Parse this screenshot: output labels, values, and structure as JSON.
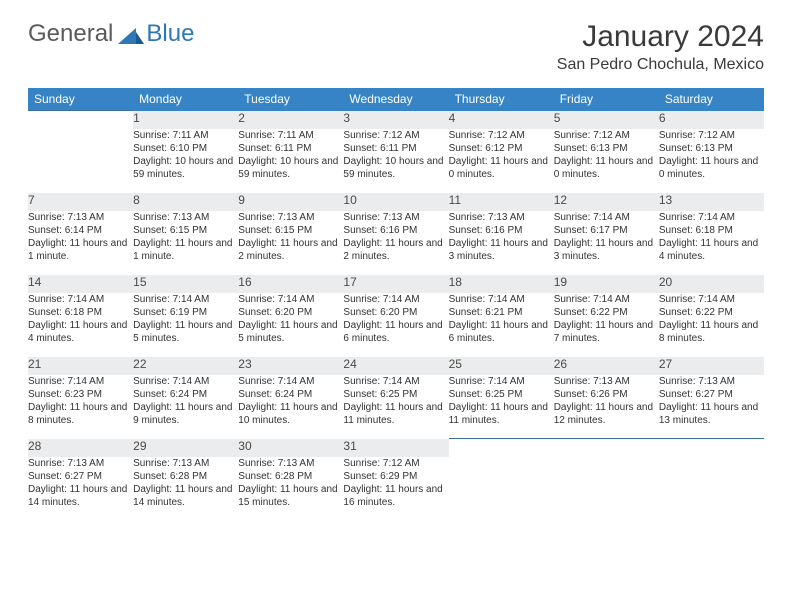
{
  "logo": {
    "general": "General",
    "blue": "Blue"
  },
  "header": {
    "month": "January 2024",
    "location": "San Pedro Chochula, Mexico"
  },
  "colors": {
    "header_bg": "#3684c6",
    "header_text": "#ffffff",
    "daynum_bg": "#ebeced",
    "rule": "#3a6fa0",
    "logo_gray": "#5a5a5a",
    "logo_blue": "#2f78b7"
  },
  "weekdays": [
    "Sunday",
    "Monday",
    "Tuesday",
    "Wednesday",
    "Thursday",
    "Friday",
    "Saturday"
  ],
  "weeks": [
    {
      "nums": [
        "",
        "1",
        "2",
        "3",
        "4",
        "5",
        "6"
      ],
      "cells": [
        null,
        {
          "sunrise": "Sunrise: 7:11 AM",
          "sunset": "Sunset: 6:10 PM",
          "daylight": "Daylight: 10 hours and 59 minutes."
        },
        {
          "sunrise": "Sunrise: 7:11 AM",
          "sunset": "Sunset: 6:11 PM",
          "daylight": "Daylight: 10 hours and 59 minutes."
        },
        {
          "sunrise": "Sunrise: 7:12 AM",
          "sunset": "Sunset: 6:11 PM",
          "daylight": "Daylight: 10 hours and 59 minutes."
        },
        {
          "sunrise": "Sunrise: 7:12 AM",
          "sunset": "Sunset: 6:12 PM",
          "daylight": "Daylight: 11 hours and 0 minutes."
        },
        {
          "sunrise": "Sunrise: 7:12 AM",
          "sunset": "Sunset: 6:13 PM",
          "daylight": "Daylight: 11 hours and 0 minutes."
        },
        {
          "sunrise": "Sunrise: 7:12 AM",
          "sunset": "Sunset: 6:13 PM",
          "daylight": "Daylight: 11 hours and 0 minutes."
        }
      ]
    },
    {
      "nums": [
        "7",
        "8",
        "9",
        "10",
        "11",
        "12",
        "13"
      ],
      "cells": [
        {
          "sunrise": "Sunrise: 7:13 AM",
          "sunset": "Sunset: 6:14 PM",
          "daylight": "Daylight: 11 hours and 1 minute."
        },
        {
          "sunrise": "Sunrise: 7:13 AM",
          "sunset": "Sunset: 6:15 PM",
          "daylight": "Daylight: 11 hours and 1 minute."
        },
        {
          "sunrise": "Sunrise: 7:13 AM",
          "sunset": "Sunset: 6:15 PM",
          "daylight": "Daylight: 11 hours and 2 minutes."
        },
        {
          "sunrise": "Sunrise: 7:13 AM",
          "sunset": "Sunset: 6:16 PM",
          "daylight": "Daylight: 11 hours and 2 minutes."
        },
        {
          "sunrise": "Sunrise: 7:13 AM",
          "sunset": "Sunset: 6:16 PM",
          "daylight": "Daylight: 11 hours and 3 minutes."
        },
        {
          "sunrise": "Sunrise: 7:14 AM",
          "sunset": "Sunset: 6:17 PM",
          "daylight": "Daylight: 11 hours and 3 minutes."
        },
        {
          "sunrise": "Sunrise: 7:14 AM",
          "sunset": "Sunset: 6:18 PM",
          "daylight": "Daylight: 11 hours and 4 minutes."
        }
      ]
    },
    {
      "nums": [
        "14",
        "15",
        "16",
        "17",
        "18",
        "19",
        "20"
      ],
      "cells": [
        {
          "sunrise": "Sunrise: 7:14 AM",
          "sunset": "Sunset: 6:18 PM",
          "daylight": "Daylight: 11 hours and 4 minutes."
        },
        {
          "sunrise": "Sunrise: 7:14 AM",
          "sunset": "Sunset: 6:19 PM",
          "daylight": "Daylight: 11 hours and 5 minutes."
        },
        {
          "sunrise": "Sunrise: 7:14 AM",
          "sunset": "Sunset: 6:20 PM",
          "daylight": "Daylight: 11 hours and 5 minutes."
        },
        {
          "sunrise": "Sunrise: 7:14 AM",
          "sunset": "Sunset: 6:20 PM",
          "daylight": "Daylight: 11 hours and 6 minutes."
        },
        {
          "sunrise": "Sunrise: 7:14 AM",
          "sunset": "Sunset: 6:21 PM",
          "daylight": "Daylight: 11 hours and 6 minutes."
        },
        {
          "sunrise": "Sunrise: 7:14 AM",
          "sunset": "Sunset: 6:22 PM",
          "daylight": "Daylight: 11 hours and 7 minutes."
        },
        {
          "sunrise": "Sunrise: 7:14 AM",
          "sunset": "Sunset: 6:22 PM",
          "daylight": "Daylight: 11 hours and 8 minutes."
        }
      ]
    },
    {
      "nums": [
        "21",
        "22",
        "23",
        "24",
        "25",
        "26",
        "27"
      ],
      "cells": [
        {
          "sunrise": "Sunrise: 7:14 AM",
          "sunset": "Sunset: 6:23 PM",
          "daylight": "Daylight: 11 hours and 8 minutes."
        },
        {
          "sunrise": "Sunrise: 7:14 AM",
          "sunset": "Sunset: 6:24 PM",
          "daylight": "Daylight: 11 hours and 9 minutes."
        },
        {
          "sunrise": "Sunrise: 7:14 AM",
          "sunset": "Sunset: 6:24 PM",
          "daylight": "Daylight: 11 hours and 10 minutes."
        },
        {
          "sunrise": "Sunrise: 7:14 AM",
          "sunset": "Sunset: 6:25 PM",
          "daylight": "Daylight: 11 hours and 11 minutes."
        },
        {
          "sunrise": "Sunrise: 7:14 AM",
          "sunset": "Sunset: 6:25 PM",
          "daylight": "Daylight: 11 hours and 11 minutes."
        },
        {
          "sunrise": "Sunrise: 7:13 AM",
          "sunset": "Sunset: 6:26 PM",
          "daylight": "Daylight: 11 hours and 12 minutes."
        },
        {
          "sunrise": "Sunrise: 7:13 AM",
          "sunset": "Sunset: 6:27 PM",
          "daylight": "Daylight: 11 hours and 13 minutes."
        }
      ]
    },
    {
      "nums": [
        "28",
        "29",
        "30",
        "31",
        "",
        "",
        ""
      ],
      "cells": [
        {
          "sunrise": "Sunrise: 7:13 AM",
          "sunset": "Sunset: 6:27 PM",
          "daylight": "Daylight: 11 hours and 14 minutes."
        },
        {
          "sunrise": "Sunrise: 7:13 AM",
          "sunset": "Sunset: 6:28 PM",
          "daylight": "Daylight: 11 hours and 14 minutes."
        },
        {
          "sunrise": "Sunrise: 7:13 AM",
          "sunset": "Sunset: 6:28 PM",
          "daylight": "Daylight: 11 hours and 15 minutes."
        },
        {
          "sunrise": "Sunrise: 7:12 AM",
          "sunset": "Sunset: 6:29 PM",
          "daylight": "Daylight: 11 hours and 16 minutes."
        },
        null,
        null,
        null
      ]
    }
  ]
}
